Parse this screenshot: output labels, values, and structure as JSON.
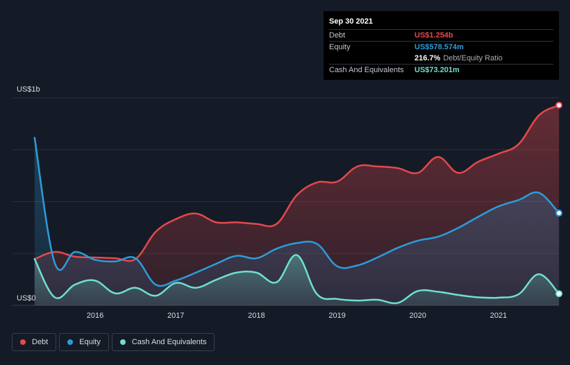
{
  "tooltip": {
    "date": "Sep 30 2021",
    "rows": [
      {
        "label": "Debt",
        "value": "US$1.254b",
        "color": "#e5484d"
      },
      {
        "label": "Equity",
        "value": "US$578.574m",
        "color": "#2d9cdb"
      },
      {
        "label": "",
        "value": "216.7%",
        "extra": "Debt/Equity Ratio",
        "color": "#ffffff"
      },
      {
        "label": "Cash And Equivalents",
        "value": "US$73.201m",
        "color": "#6fe0cf"
      }
    ]
  },
  "legend": [
    {
      "label": "Debt",
      "color": "#e5484d"
    },
    {
      "label": "Equity",
      "color": "#2d9cdb"
    },
    {
      "label": "Cash And Equivalents",
      "color": "#6fe0cf"
    }
  ],
  "chart_data": {
    "type": "area",
    "y_unit": "US$ millions",
    "ylim": [
      0,
      1300
    ],
    "y_ticks": [
      {
        "value": 1300,
        "label": "US$1b"
      },
      {
        "value": 0,
        "label": "US$0"
      }
    ],
    "xlim": [
      2015.1,
      2021.75
    ],
    "x_ticks": [
      2016,
      2017,
      2018,
      2019,
      2020,
      2021
    ],
    "grid": true,
    "legend_position": "bottom-left",
    "series": [
      {
        "name": "Debt",
        "color": "#e5484d",
        "x": [
          2015.25,
          2015.5,
          2015.75,
          2016.0,
          2016.25,
          2016.5,
          2016.75,
          2017.0,
          2017.25,
          2017.5,
          2017.75,
          2018.0,
          2018.25,
          2018.5,
          2018.75,
          2019.0,
          2019.25,
          2019.5,
          2019.75,
          2020.0,
          2020.25,
          2020.5,
          2020.75,
          2021.0,
          2021.25,
          2021.5,
          2021.75
        ],
        "values": [
          290,
          335,
          305,
          300,
          295,
          290,
          460,
          540,
          575,
          520,
          520,
          510,
          510,
          690,
          770,
          775,
          870,
          870,
          860,
          830,
          930,
          830,
          900,
          950,
          1010,
          1190,
          1254
        ]
      },
      {
        "name": "Equity",
        "color": "#2d9cdb",
        "x": [
          2015.25,
          2015.5,
          2015.75,
          2016.0,
          2016.25,
          2016.5,
          2016.75,
          2017.0,
          2017.25,
          2017.5,
          2017.75,
          2018.0,
          2018.25,
          2018.5,
          2018.75,
          2019.0,
          2019.25,
          2019.5,
          2019.75,
          2020.0,
          2020.25,
          2020.5,
          2020.75,
          2021.0,
          2021.25,
          2021.5,
          2021.75
        ],
        "values": [
          1050,
          265,
          335,
          285,
          275,
          295,
          130,
          155,
          205,
          260,
          310,
          295,
          355,
          390,
          385,
          245,
          250,
          300,
          360,
          405,
          430,
          485,
          555,
          620,
          660,
          705,
          578
        ]
      },
      {
        "name": "Cash And Equivalents",
        "color": "#6fe0cf",
        "x": [
          2015.25,
          2015.5,
          2015.75,
          2016.0,
          2016.25,
          2016.5,
          2016.75,
          2017.0,
          2017.25,
          2017.5,
          2017.75,
          2018.0,
          2018.25,
          2018.5,
          2018.75,
          2019.0,
          2019.25,
          2019.5,
          2019.75,
          2020.0,
          2020.25,
          2020.5,
          2020.75,
          2021.0,
          2021.25,
          2021.5,
          2021.75
        ],
        "values": [
          290,
          50,
          130,
          155,
          75,
          110,
          60,
          140,
          110,
          160,
          205,
          205,
          145,
          315,
          70,
          40,
          30,
          35,
          15,
          90,
          85,
          65,
          50,
          48,
          70,
          195,
          73
        ]
      }
    ]
  }
}
